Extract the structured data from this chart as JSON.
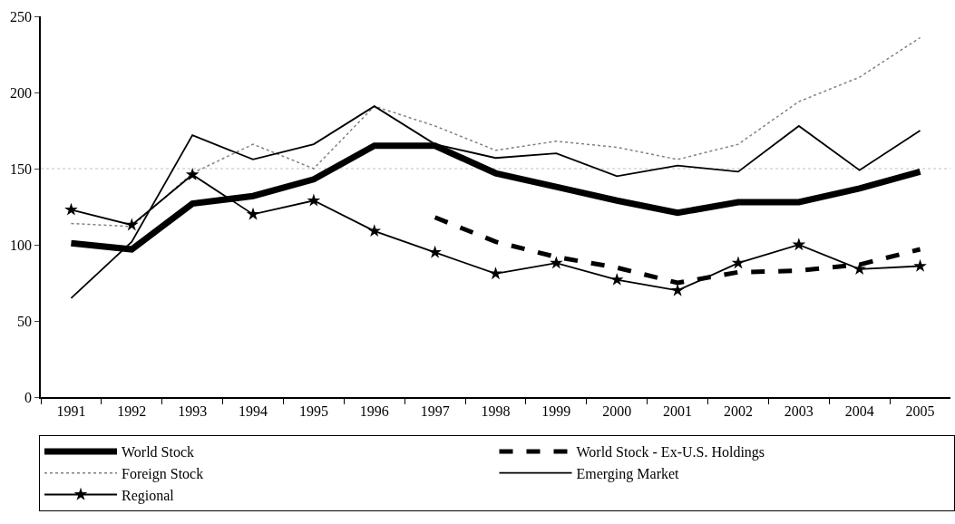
{
  "chart_data": {
    "type": "line",
    "categories": [
      "1991",
      "1992",
      "1993",
      "1994",
      "1995",
      "1996",
      "1997",
      "1998",
      "1999",
      "2000",
      "2001",
      "2002",
      "2003",
      "2004",
      "2005"
    ],
    "ylim": [
      0,
      250
    ],
    "yticks": [
      0,
      50,
      100,
      150,
      200,
      250
    ],
    "grid": false,
    "legend": "bottom",
    "marker": "none",
    "ref_lines": [
      {
        "axis": "y",
        "value": 150,
        "label": null,
        "color": "#c0c0c0",
        "line_style": "dotted"
      }
    ],
    "series": [
      {
        "name": "World Stock",
        "color": "#000000",
        "line_style": "solid",
        "values": [
          101,
          97,
          127,
          132,
          143,
          165,
          165,
          147,
          138,
          129,
          121,
          128,
          128,
          137,
          148
        ]
      },
      {
        "name": "World Stock - Ex-U.S. Holdings",
        "color": "#000000",
        "line_style": "dashed",
        "values": [
          null,
          null,
          null,
          null,
          null,
          null,
          118,
          102,
          92,
          85,
          75,
          82,
          83,
          87,
          97
        ]
      },
      {
        "name": "Foreign Stock",
        "color": "#808080",
        "line_style": "dotted",
        "values": [
          114,
          112,
          147,
          166,
          150,
          191,
          178,
          162,
          168,
          164,
          156,
          166,
          194,
          210,
          236
        ]
      },
      {
        "name": "Emerging Market",
        "color": "#000000",
        "line_style": "solid",
        "values": [
          65,
          102,
          172,
          156,
          166,
          191,
          166,
          157,
          160,
          145,
          152,
          148,
          178,
          149,
          175
        ]
      },
      {
        "name": "Regional",
        "color": "#000000",
        "line_style": "solid",
        "marker": "star",
        "values": [
          123,
          113,
          146,
          120,
          129,
          109,
          95,
          81,
          88,
          77,
          70,
          88,
          100,
          84,
          86
        ]
      }
    ]
  }
}
